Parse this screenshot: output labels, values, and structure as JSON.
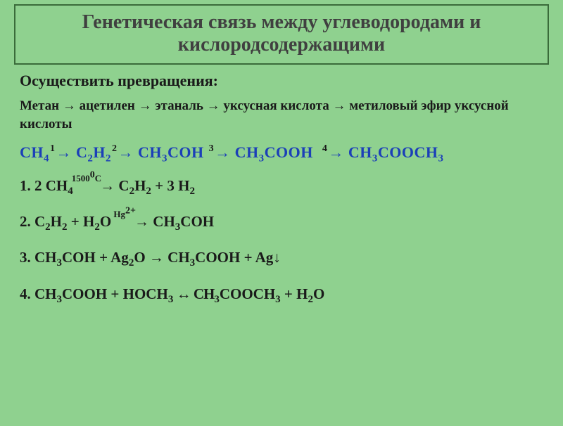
{
  "title_line1": "Генетическая связь между углеводородами и",
  "title_line2": "кислородсодержащими",
  "subtitle": "Осуществить превращения:",
  "chain_words": "Метан → ацетилен  → этаналь  → уксусная кислота  → метиловый эфир уксусной кислоты",
  "chain": {
    "c1": "CH",
    "c1s": "4",
    "n1": "1",
    "c2": "C",
    "c2s": "2",
    "c2b": "H",
    "c2bs": "2",
    "n2": "2",
    "c3": "CH",
    "c3s": "3",
    "c3b": "COH",
    "n3": "3",
    "c4": "CH",
    "c4s": "3",
    "c4b": "COOH",
    "n4": "4",
    "c5": "CH",
    "c5s": "3",
    "c5b": "COOCH",
    "c5bs": "3"
  },
  "r1": {
    "lead": "1. 2 CH",
    "s1": "4",
    "cond": "1500",
    "deg": "0",
    "condC": "C",
    "mid": "   C",
    "s2": "2",
    "mid2": "H",
    "s3": "2",
    "plus": "  +  3 H",
    "s4": "2"
  },
  "r2": {
    "lead": "2. C",
    "s1": "2",
    "m1": "H",
    "s2": "2",
    "plus1": " + H",
    "s3": "2",
    "o": "O  ",
    "cond": "Hg",
    "condsup": "2+",
    "prod": "  CH",
    "s4": "3",
    "coh": "COH"
  },
  "r3": {
    "lead": "3. CH",
    "s1": "3",
    "m1": "COH + Ag",
    "s2": "2",
    "m2": "O → CH",
    "s3": "3",
    "m3": "COOH + Ag↓"
  },
  "r4": {
    "lead": "4. CH",
    "s1": "3",
    "m1": "COOH + HOCH",
    "s2": "3",
    "arr": " ↔ CH",
    "s3": "3",
    "m2": "COOCH",
    "s4": "3",
    "plus": " + H",
    "s5": "2",
    "o": "O"
  }
}
